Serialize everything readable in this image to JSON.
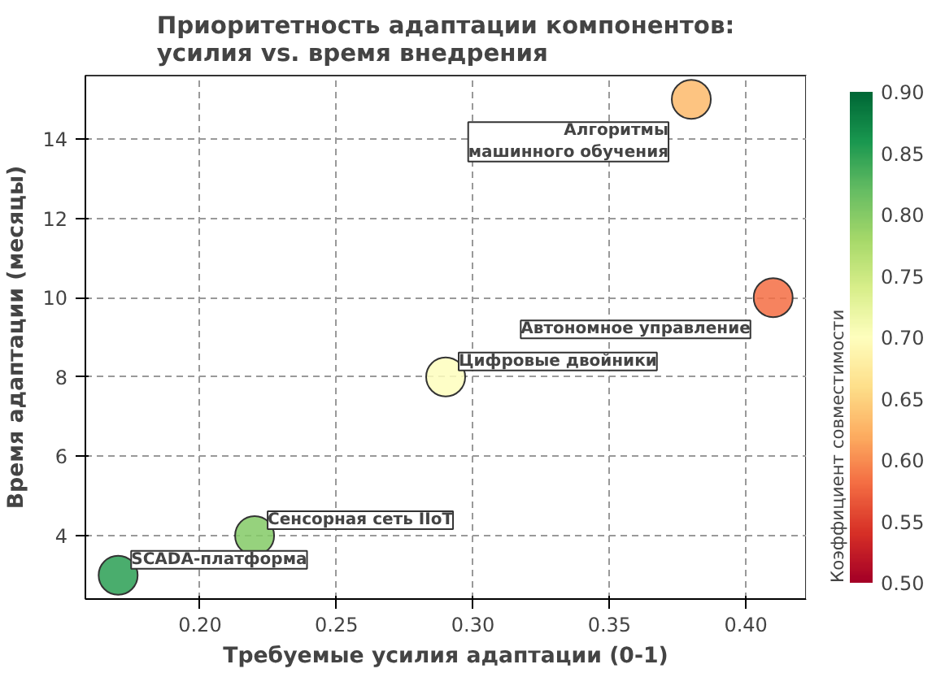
{
  "chart_data": {
    "type": "scatter",
    "title": "Приоритетность адаптации компонентов:\nусилия vs. время внедрения",
    "xlabel": "Требуемые усилия адаптации (0-1)",
    "ylabel": "Время адаптации (месяцы)",
    "clabel": "Коэффициент совместимости",
    "x": [
      0.17,
      0.22,
      0.29,
      0.38,
      0.41
    ],
    "values": [
      3,
      4,
      8,
      15,
      10
    ],
    "cvalues": [
      0.85,
      0.8,
      0.7,
      0.63,
      0.58
    ],
    "clim": [
      0.5,
      0.9
    ],
    "cticks": [
      {
        "value": 0.5,
        "label": "0.50"
      },
      0.55,
      {
        "value": 0.6,
        "label": "0.60"
      },
      0.65,
      {
        "value": 0.7,
        "label": "0.70"
      },
      0.75,
      {
        "value": 0.8,
        "label": "0.80"
      },
      0.85,
      {
        "value": 0.9,
        "label": "0.90"
      }
    ],
    "xlim": [
      0.158,
      0.422
    ],
    "xticks": [
      {
        "value": 0.2,
        "label": "0.20"
      },
      0.25,
      {
        "value": 0.3,
        "label": "0.30"
      },
      0.35,
      {
        "value": 0.4,
        "label": "0.40"
      }
    ],
    "ylim": [
      2.4,
      15.6
    ],
    "yticks": [
      4,
      6,
      8,
      10,
      12,
      14
    ],
    "grid": true,
    "marker": "circle",
    "annotations": [
      {
        "text": "SCADA-платформа",
        "x": 0.17,
        "y": 3
      },
      {
        "text": "Сенсорная сеть IIoT",
        "x": 0.22,
        "y": 4
      },
      {
        "text": "Цифровые двойники",
        "x": 0.29,
        "y": 8
      },
      {
        "text": "Алгоритмы\nмашинного обучения",
        "x": 0.38,
        "y": 15
      },
      {
        "text": "Автономное управление",
        "x": 0.41,
        "y": 10
      }
    ]
  }
}
